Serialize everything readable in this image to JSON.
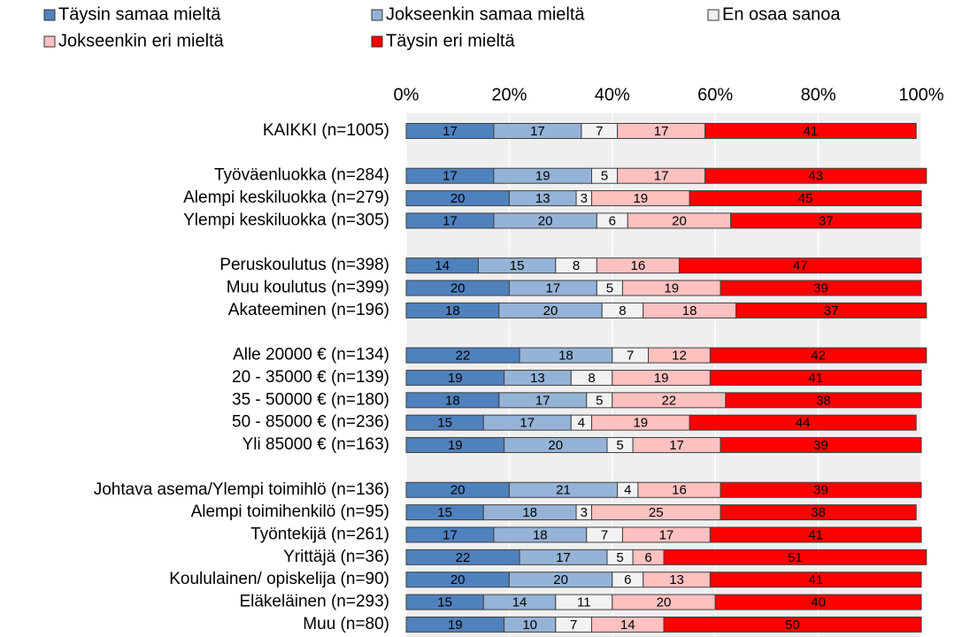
{
  "chart_data": {
    "type": "stacked_bar_horizontal_100",
    "categories": [
      "KAIKKI (n=1005)",
      null,
      "Työväenluokka (n=284)",
      "Alempi keskiluokka (n=279)",
      "Ylempi keskiluokka (n=305)",
      null,
      "Peruskoulutus (n=398)",
      "Muu koulutus (n=399)",
      "Akateeminen (n=196)",
      null,
      "Alle 20000 € (n=134)",
      "20 - 35000 € (n=139)",
      "35 - 50000 € (n=180)",
      "50 - 85000 € (n=236)",
      "Yli 85000 € (n=163)",
      null,
      "Johtava asema/Ylempi toimihlö (n=136)",
      "Alempi toimihenkilö (n=95)",
      "Työntekijä (n=261)",
      "Yrittäjä (n=36)",
      "Koululainen/ opiskelija (n=90)",
      "Eläkeläinen (n=293)",
      "Muu (n=80)"
    ],
    "series": [
      {
        "name": "Täysin samaa mieltä",
        "color": "#4f81bd",
        "values": [
          17,
          null,
          17,
          20,
          17,
          null,
          14,
          20,
          18,
          null,
          22,
          19,
          18,
          15,
          19,
          null,
          20,
          15,
          17,
          22,
          20,
          15,
          19
        ]
      },
      {
        "name": "Jokseenkin samaa mieltä",
        "color": "#95b3d7",
        "values": [
          17,
          null,
          19,
          13,
          20,
          null,
          15,
          17,
          20,
          null,
          18,
          13,
          17,
          17,
          20,
          null,
          21,
          18,
          18,
          17,
          20,
          14,
          10
        ]
      },
      {
        "name": "En osaa sanoa",
        "color": "#f2f2f2",
        "values": [
          7,
          null,
          5,
          3,
          6,
          null,
          8,
          5,
          8,
          null,
          7,
          8,
          5,
          4,
          5,
          null,
          4,
          3,
          7,
          5,
          6,
          11,
          7
        ]
      },
      {
        "name": "Jokseenkin eri mieltä",
        "color": "#ffc0c0",
        "values": [
          17,
          null,
          17,
          19,
          20,
          null,
          16,
          19,
          18,
          null,
          12,
          19,
          22,
          19,
          17,
          null,
          16,
          25,
          17,
          6,
          13,
          20,
          14
        ]
      },
      {
        "name": "Täysin eri mieltä",
        "color": "#ff0000",
        "values": [
          41,
          null,
          43,
          45,
          37,
          null,
          47,
          39,
          37,
          null,
          42,
          41,
          38,
          44,
          39,
          null,
          39,
          38,
          41,
          51,
          41,
          40,
          50
        ]
      }
    ],
    "xlim": [
      0,
      100
    ],
    "xticks": [
      {
        "value": 0,
        "label": "0%"
      },
      {
        "value": 20,
        "label": "20%"
      },
      {
        "value": 40,
        "label": "40%"
      },
      {
        "value": 60,
        "label": "60%"
      },
      {
        "value": 80,
        "label": "80%"
      },
      {
        "value": 100,
        "label": "100%"
      }
    ],
    "grid": true,
    "legend": "top"
  }
}
